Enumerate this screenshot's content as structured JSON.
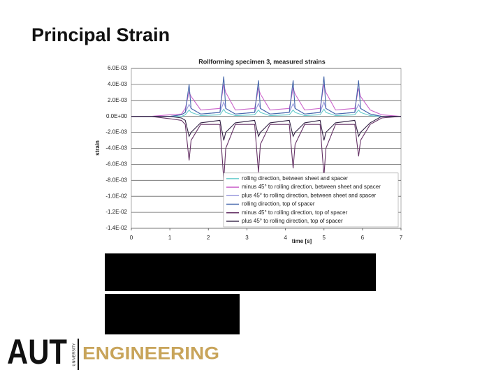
{
  "slide": {
    "title": "Principal Strain"
  },
  "logo": {
    "mark": "AUT",
    "university": "UNIVERSITY",
    "department": "ENGINEERING"
  },
  "chart_data": {
    "type": "line",
    "title": "Rollforming specimen 3, measured strains",
    "x_label": "time [s]",
    "y_label": "strain",
    "x": [
      0,
      0.5,
      1.0,
      1.3,
      1.4,
      1.5,
      1.55,
      1.8,
      2.3,
      2.4,
      2.45,
      2.7,
      3.2,
      3.3,
      3.35,
      3.6,
      4.1,
      4.2,
      4.25,
      4.5,
      4.9,
      5.0,
      5.05,
      5.3,
      5.8,
      5.9,
      5.95,
      6.2,
      6.5,
      7.0
    ],
    "series": [
      {
        "name": "rolling direction, between sheet and spacer",
        "color": "#66cccc",
        "values": [
          0,
          0,
          0,
          0,
          0.0002,
          0.0008,
          0.0005,
          0.0001,
          0.0002,
          0.0009,
          0.0005,
          0.0001,
          0.0002,
          0.0008,
          0.0005,
          0.0001,
          0.0002,
          0.0008,
          0.0005,
          0.0001,
          0.0002,
          0.0009,
          0.0005,
          0.0001,
          0.0002,
          0.0008,
          0.0005,
          0.0001,
          0,
          0
        ]
      },
      {
        "name": "minus 45° to rolling direction, between sheet and spacer",
        "color": "#cc66cc",
        "values": [
          0,
          0,
          0.0002,
          0.0003,
          0.001,
          0.003,
          0.0025,
          0.0008,
          0.001,
          0.004,
          0.003,
          0.0008,
          0.001,
          0.0035,
          0.0028,
          0.0008,
          0.001,
          0.0035,
          0.0028,
          0.0008,
          0.001,
          0.004,
          0.003,
          0.0008,
          0.001,
          0.0035,
          0.0025,
          0.0008,
          0.0002,
          0
        ]
      },
      {
        "name": "plus 45° to rolling direction, between sheet and spacer",
        "color": "#9999dd",
        "values": [
          0,
          0,
          0,
          0.0002,
          0.0005,
          0.0015,
          0.001,
          0.0003,
          0.0005,
          0.0018,
          0.001,
          0.0003,
          0.0005,
          0.0016,
          0.001,
          0.0003,
          0.0005,
          0.0016,
          0.001,
          0.0003,
          0.0005,
          0.0018,
          0.001,
          0.0003,
          0.0005,
          0.0015,
          0.001,
          0.0003,
          0,
          0
        ]
      },
      {
        "name": "rolling direction, top of spacer",
        "color": "#4466aa",
        "values": [
          0,
          0,
          0,
          0.0002,
          0.0005,
          0.004,
          0.001,
          0.0003,
          0.0005,
          0.005,
          0.001,
          0.0003,
          0.0005,
          0.0045,
          0.001,
          0.0003,
          0.0005,
          0.0045,
          0.001,
          0.0003,
          0.0005,
          0.005,
          0.001,
          0.0003,
          0.0005,
          0.0045,
          0.001,
          0.0003,
          0,
          0
        ]
      },
      {
        "name": "minus 45° to rolling direction, top of spacer",
        "color": "#663366",
        "values": [
          0,
          0,
          -0.0003,
          -0.0005,
          -0.001,
          -0.0055,
          -0.003,
          -0.001,
          -0.001,
          -0.008,
          -0.004,
          -0.001,
          -0.001,
          -0.007,
          -0.0035,
          -0.001,
          -0.001,
          -0.0065,
          -0.0035,
          -0.001,
          -0.001,
          -0.0075,
          -0.004,
          -0.001,
          -0.001,
          -0.005,
          -0.003,
          -0.001,
          -0.0002,
          0
        ]
      },
      {
        "name": "plus 45° to rolling direction, top of spacer",
        "color": "#332244",
        "values": [
          0,
          0,
          0,
          -0.0002,
          -0.0005,
          -0.0025,
          -0.002,
          -0.0008,
          -0.0005,
          -0.003,
          -0.002,
          -0.0008,
          -0.0005,
          -0.0025,
          -0.002,
          -0.0008,
          -0.0005,
          -0.0025,
          -0.002,
          -0.0008,
          -0.0005,
          -0.003,
          -0.002,
          -0.0008,
          -0.0005,
          -0.0025,
          -0.002,
          -0.0008,
          0,
          0
        ]
      }
    ],
    "xlim": [
      0,
      7
    ],
    "xticks": [
      0,
      1,
      2,
      3,
      4,
      5,
      6,
      7
    ],
    "ylim": [
      -0.014,
      0.006
    ],
    "yticks": [
      {
        "value": 0.006,
        "label": "6.0E-03"
      },
      {
        "value": 0.004,
        "label": "4.0E-03"
      },
      {
        "value": 0.002,
        "label": "2.0E-03"
      },
      {
        "value": 0,
        "label": "0.0E+00"
      },
      {
        "value": -0.002,
        "label": "-2.0E-03"
      },
      {
        "value": -0.004,
        "label": "-4.0E-03"
      },
      {
        "value": -0.006,
        "label": "-6.0E-03"
      },
      {
        "value": -0.008,
        "label": "-8.0E-03"
      },
      {
        "value": -0.01,
        "label": "-1.0E-02"
      },
      {
        "value": -0.012,
        "label": "-1.2E-02"
      },
      {
        "value": -0.014,
        "label": "-1.4E-02"
      }
    ],
    "grid": true,
    "legend": "lower right"
  }
}
